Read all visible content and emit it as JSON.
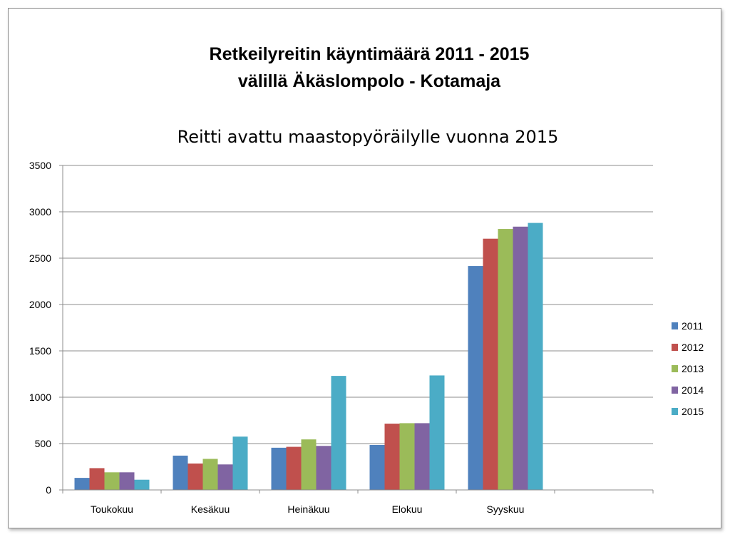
{
  "chart_data": {
    "type": "bar",
    "title_lines": [
      "Retkeilyreitin käyntimäärä 2011 - 2015",
      "välillä Äkäslompolo - Kotamaja"
    ],
    "subtitle": "Reitti avattu maastopyöräilylle vuonna 2015",
    "categories": [
      "Toukokuu",
      "Kesäkuu",
      "Heinäkuu",
      "Elokuu",
      "Syyskuu"
    ],
    "series": [
      {
        "name": "2011",
        "color": "#4f81bd",
        "values": [
          130,
          370,
          455,
          485,
          2415
        ]
      },
      {
        "name": "2012",
        "color": "#c0504d",
        "values": [
          235,
          285,
          465,
          715,
          2710
        ]
      },
      {
        "name": "2013",
        "color": "#9bbb59",
        "values": [
          190,
          335,
          545,
          720,
          2815
        ]
      },
      {
        "name": "2014",
        "color": "#8064a2",
        "values": [
          190,
          275,
          475,
          720,
          2840
        ]
      },
      {
        "name": "2015",
        "color": "#4bacc6",
        "values": [
          110,
          575,
          1230,
          1235,
          2880
        ]
      }
    ],
    "ylim": [
      0,
      3500
    ],
    "yticks": [
      0,
      500,
      1000,
      1500,
      2000,
      2500,
      3000,
      3500
    ],
    "grid": true,
    "legend_position": "right"
  }
}
